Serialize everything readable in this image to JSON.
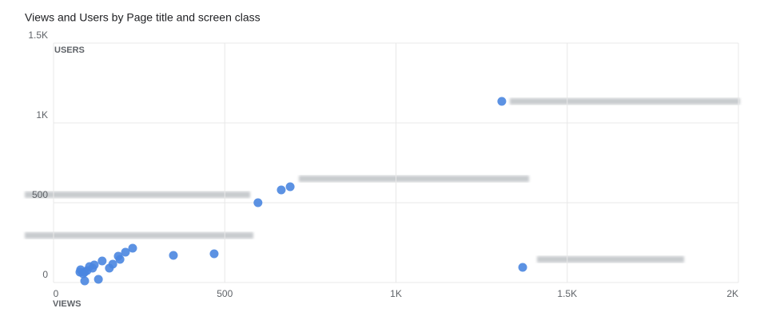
{
  "chart_data": {
    "type": "scatter",
    "title": "Views and Users by Page title and screen class",
    "x_label": "VIEWS",
    "y_label": "USERS",
    "xlim": [
      0,
      2000
    ],
    "xticks": [
      0,
      500,
      {
        "value": 1000,
        "label": "1K"
      },
      {
        "value": 1500,
        "label": "1.5K"
      },
      {
        "value": 2000,
        "label": "2K"
      }
    ],
    "ylim": [
      0,
      1500
    ],
    "yticks": [
      0,
      500,
      {
        "value": 1000,
        "label": "1K"
      },
      {
        "value": 1500,
        "label": "1.5K"
      }
    ],
    "grid": true,
    "color": "#4a86e0",
    "x": [
      1309,
      1370,
      691,
      665,
      597,
      469,
      350,
      231,
      210,
      189,
      194,
      173,
      163,
      142,
      131,
      119,
      114,
      105,
      98,
      91,
      79,
      77,
      91,
      86
    ],
    "values": [
      1135,
      95,
      600,
      580,
      500,
      180,
      170,
      215,
      190,
      165,
      145,
      115,
      90,
      135,
      20,
      110,
      90,
      100,
      75,
      65,
      80,
      65,
      10,
      55
    ]
  }
}
